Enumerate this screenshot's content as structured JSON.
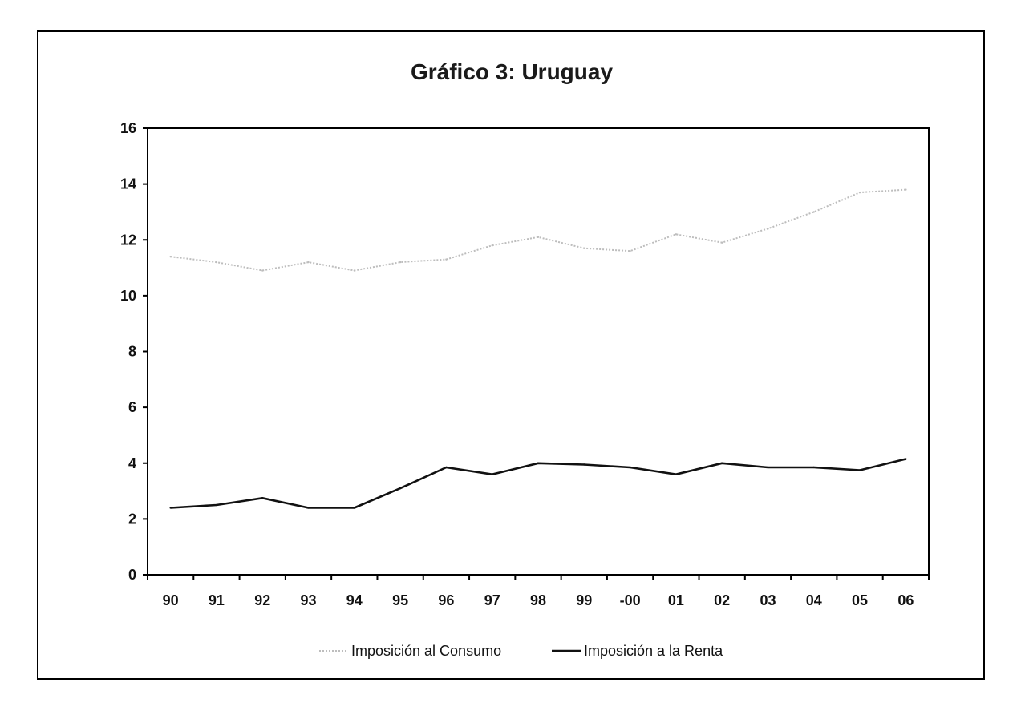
{
  "chart_data": {
    "type": "line",
    "title": "Gráfico 3: Uruguay",
    "xlabel": "",
    "ylabel": "",
    "categories": [
      "90",
      "91",
      "92",
      "93",
      "94",
      "95",
      "96",
      "97",
      "98",
      "99",
      "-00",
      "01",
      "02",
      "03",
      "04",
      "05",
      "06"
    ],
    "ylim": [
      0,
      16
    ],
    "yticks": [
      0,
      2,
      4,
      6,
      8,
      10,
      12,
      14,
      16
    ],
    "grid": false,
    "legend_position": "bottom",
    "series": [
      {
        "name": "Imposición al Consumo",
        "color": "#bdbdbd",
        "style": "dotted",
        "values": [
          11.4,
          11.2,
          10.9,
          11.2,
          10.9,
          11.2,
          11.3,
          11.8,
          12.1,
          11.7,
          11.6,
          12.2,
          11.9,
          12.4,
          13.0,
          13.7,
          13.8
        ]
      },
      {
        "name": "Imposición a la Renta",
        "color": "#111111",
        "style": "solid",
        "values": [
          2.4,
          2.5,
          2.75,
          2.4,
          2.4,
          3.1,
          3.85,
          3.6,
          4.0,
          3.95,
          3.85,
          3.6,
          4.0,
          3.85,
          3.85,
          3.75,
          4.15
        ]
      }
    ]
  }
}
